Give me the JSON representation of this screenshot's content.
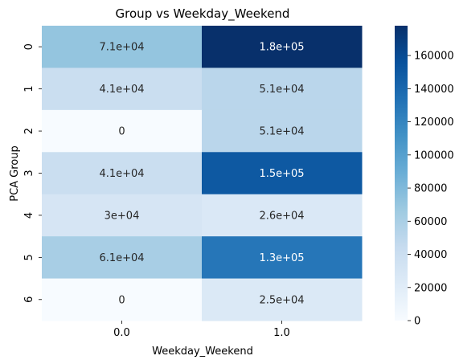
{
  "chart_data": {
    "type": "heatmap",
    "title": "Group vs Weekday_Weekend",
    "xlabel": "Weekday_Weekend",
    "ylabel": "PCA Group",
    "x_categories": [
      "0.0",
      "1.0"
    ],
    "y_categories": [
      "0",
      "1",
      "2",
      "3",
      "4",
      "5",
      "6"
    ],
    "values": [
      [
        71000,
        178000
      ],
      [
        41000,
        51000
      ],
      [
        0,
        51000
      ],
      [
        41000,
        150000
      ],
      [
        30000,
        26000
      ],
      [
        61000,
        130000
      ],
      [
        0,
        25000
      ]
    ],
    "annotations": [
      [
        "7.1e+04",
        "1.8e+05"
      ],
      [
        "4.1e+04",
        "5.1e+04"
      ],
      [
        "0",
        "5.1e+04"
      ],
      [
        "4.1e+04",
        "1.5e+05"
      ],
      [
        "3e+04",
        "2.6e+04"
      ],
      [
        "6.1e+04",
        "1.3e+05"
      ],
      [
        "0",
        "2.5e+04"
      ]
    ],
    "colorbar": {
      "min": 0,
      "max": 178000,
      "ticks": [
        0,
        20000,
        40000,
        60000,
        80000,
        100000,
        120000,
        140000,
        160000
      ],
      "tick_labels": [
        "0",
        "20000",
        "40000",
        "60000",
        "80000",
        "100000",
        "120000",
        "140000",
        "160000"
      ]
    },
    "colormap": "Blues"
  }
}
